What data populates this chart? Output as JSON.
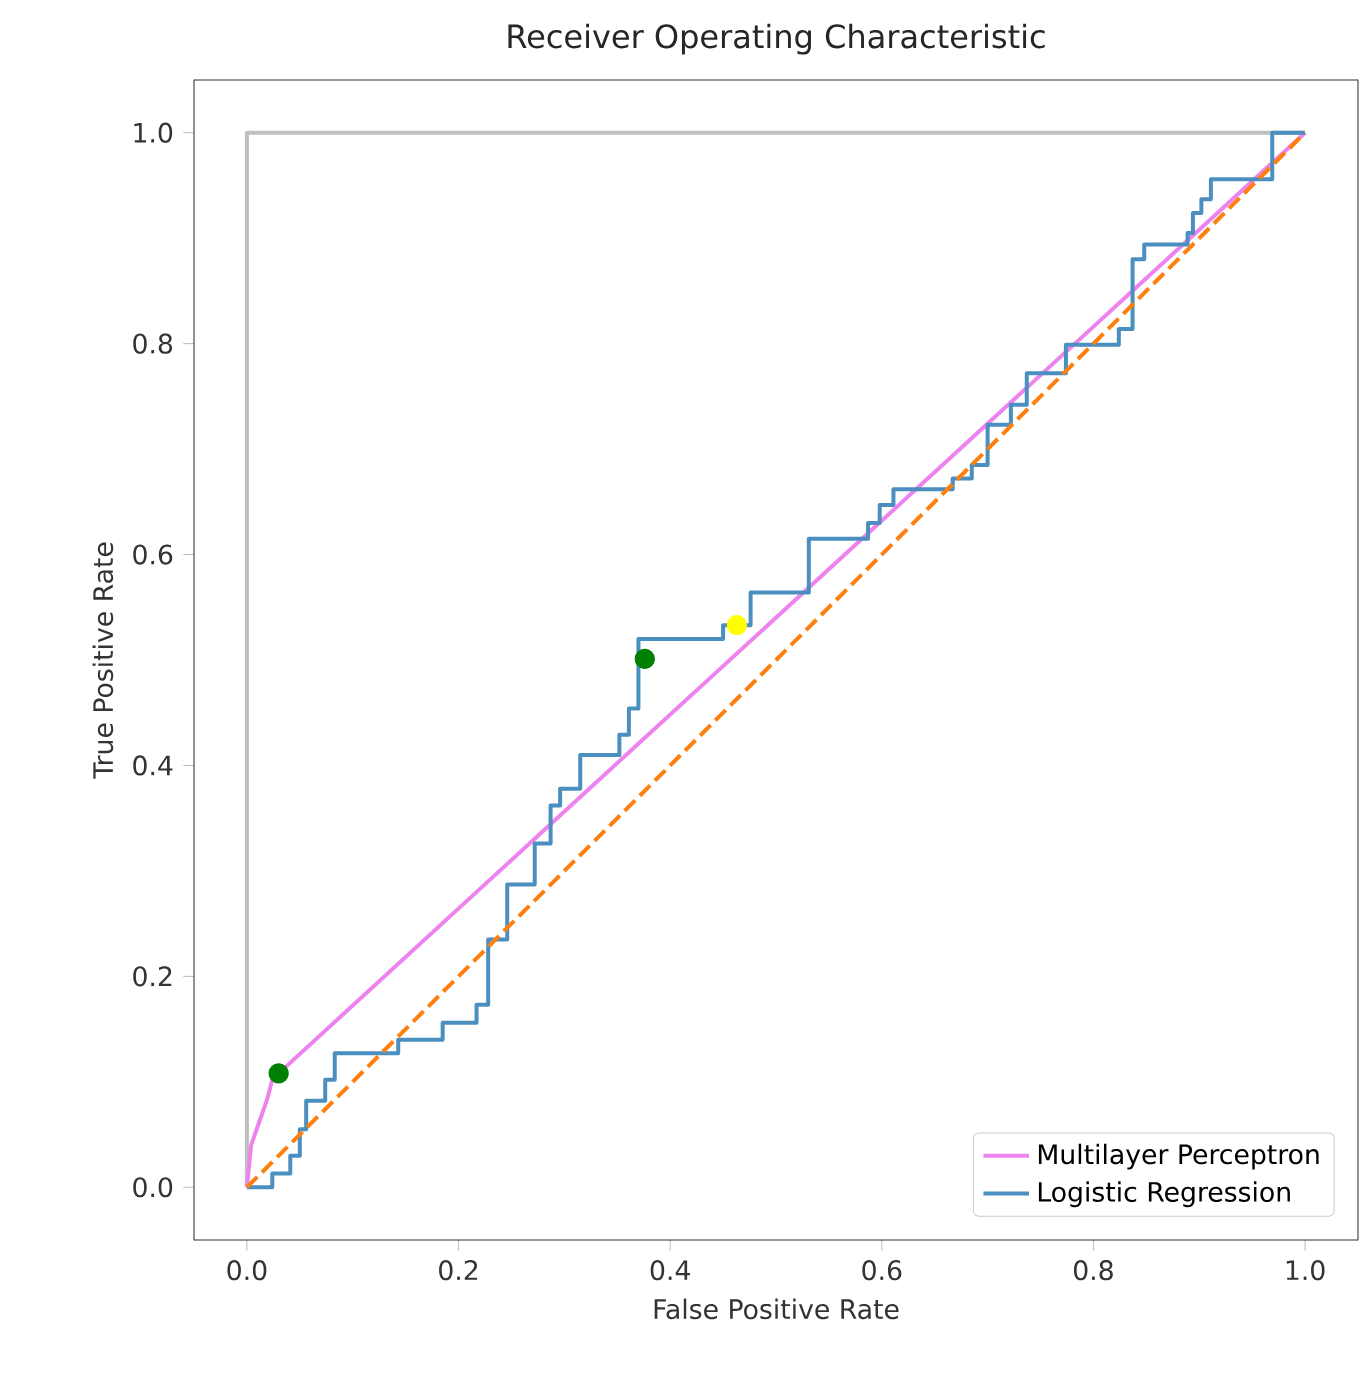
{
  "chart_data": {
    "type": "line",
    "title": "Receiver Operating Characteristic",
    "xlabel": "False Positive Rate",
    "ylabel": "True Positive Rate",
    "xlim": [
      -0.05,
      1.05
    ],
    "ylim": [
      -0.05,
      1.05
    ],
    "xticks": [
      {
        "value": 0,
        "label": "0.0"
      },
      {
        "value": 0.2,
        "label": "0.2"
      },
      {
        "value": 0.4,
        "label": "0.4"
      },
      {
        "value": 0.6,
        "label": "0.6"
      },
      {
        "value": 0.8,
        "label": "0.8"
      },
      {
        "value": 1,
        "label": "1.0"
      }
    ],
    "yticks": [
      {
        "value": 0,
        "label": "0.0"
      },
      {
        "value": 0.2,
        "label": "0.2"
      },
      {
        "value": 0.4,
        "label": "0.4"
      },
      {
        "value": 0.6,
        "label": "0.6"
      },
      {
        "value": 0.8,
        "label": "0.8"
      },
      {
        "value": 1,
        "label": "1.0"
      }
    ],
    "legend": "bottom right",
    "series": [
      {
        "color": "#c0c0c0",
        "x": [
          0,
          0,
          1
        ],
        "values": [
          0,
          1,
          1
        ]
      },
      {
        "name": "Multilayer Perceptron",
        "color": "#ee82ee",
        "x": [
          0,
          0.004,
          0.019,
          0.024,
          0.03,
          1
        ],
        "values": [
          0,
          0.04,
          0.083,
          0.102,
          0.108,
          1
        ]
      },
      {
        "name": "Logistic Regression",
        "color": "#4a8fc0",
        "x": [
          0,
          0.024,
          0.024,
          0.041,
          0.041,
          0.05,
          0.05,
          0.056,
          0.056,
          0.074,
          0.074,
          0.083,
          0.083,
          0.143,
          0.143,
          0.185,
          0.185,
          0.217,
          0.217,
          0.228,
          0.228,
          0.246,
          0.246,
          0.272,
          0.272,
          0.287,
          0.287,
          0.296,
          0.296,
          0.315,
          0.315,
          0.352,
          0.352,
          0.361,
          0.361,
          0.37,
          0.37,
          0.45,
          0.45,
          0.476,
          0.476,
          0.531,
          0.531,
          0.587,
          0.587,
          0.598,
          0.598,
          0.611,
          0.611,
          0.667,
          0.667,
          0.685,
          0.685,
          0.7,
          0.7,
          0.722,
          0.722,
          0.737,
          0.737,
          0.774,
          0.774,
          0.824,
          0.824,
          0.837,
          0.837,
          0.848,
          0.848,
          0.889,
          0.889,
          0.894,
          0.894,
          0.902,
          0.902,
          0.911,
          0.911,
          0.969,
          0.969,
          1
        ],
        "values": [
          0,
          0,
          0.013,
          0.013,
          0.03,
          0.03,
          0.055,
          0.055,
          0.082,
          0.082,
          0.102,
          0.102,
          0.127,
          0.127,
          0.14,
          0.14,
          0.156,
          0.156,
          0.173,
          0.173,
          0.235,
          0.235,
          0.287,
          0.287,
          0.326,
          0.326,
          0.362,
          0.362,
          0.378,
          0.378,
          0.41,
          0.41,
          0.429,
          0.429,
          0.454,
          0.454,
          0.52,
          0.52,
          0.533,
          0.533,
          0.564,
          0.564,
          0.615,
          0.615,
          0.63,
          0.63,
          0.647,
          0.647,
          0.662,
          0.662,
          0.672,
          0.672,
          0.685,
          0.685,
          0.723,
          0.723,
          0.742,
          0.742,
          0.772,
          0.772,
          0.799,
          0.799,
          0.814,
          0.814,
          0.88,
          0.88,
          0.894,
          0.894,
          0.905,
          0.905,
          0.924,
          0.924,
          0.937,
          0.937,
          0.956,
          0.956,
          1,
          1
        ]
      },
      {
        "color": "#ff7f0e",
        "line_style": "dashed",
        "x": [
          0,
          1
        ],
        "values": [
          0,
          1
        ]
      },
      {
        "type": "scatter",
        "marker": "circle",
        "color": "#008000",
        "x": [
          0.03,
          0.376
        ],
        "values": [
          0.108,
          0.501
        ]
      },
      {
        "type": "scatter",
        "marker": "circle",
        "color": "#ffff00",
        "x": [
          0.463
        ],
        "values": [
          0.533
        ]
      }
    ]
  }
}
